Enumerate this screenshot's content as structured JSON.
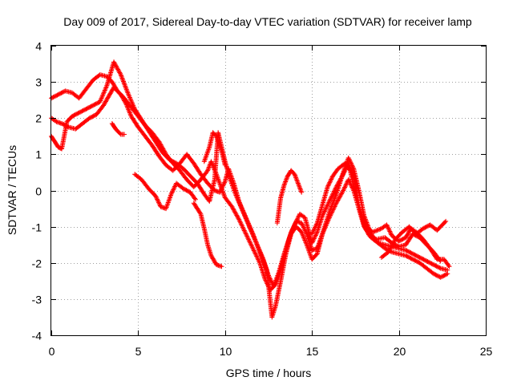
{
  "chart_data": {
    "type": "scatter",
    "title": "Day 009 of 2017, Sidereal Day-to-day VTEC variation (SDTVAR) for receiver lamp",
    "xlabel": "GPS time / hours",
    "ylabel": "SDTVAR / TECUs",
    "xlim": [
      0,
      25
    ],
    "ylim": [
      -4,
      4
    ],
    "xticks": [
      0,
      5,
      10,
      15,
      20,
      25
    ],
    "yticks": [
      -4,
      -3,
      -2,
      -1,
      0,
      1,
      2,
      3,
      4
    ],
    "grid": true,
    "marker": "+",
    "color": "#ff0000",
    "series": [
      {
        "values": [
          [
            0,
            2.55
          ],
          [
            0.4,
            2.65
          ],
          [
            0.8,
            2.75
          ],
          [
            1.2,
            2.7
          ],
          [
            1.6,
            2.55
          ],
          [
            2.0,
            2.8
          ],
          [
            2.4,
            3.05
          ],
          [
            2.8,
            3.2
          ],
          [
            3.2,
            3.15
          ],
          [
            3.5,
            3.0
          ],
          [
            3.8,
            2.75
          ],
          [
            4.2,
            2.55
          ],
          [
            4.6,
            2.3
          ],
          [
            5.0,
            2.05
          ],
          [
            5.4,
            1.8
          ],
          [
            5.8,
            1.6
          ],
          [
            6.2,
            1.35
          ],
          [
            6.6,
            1.0
          ],
          [
            7.0,
            0.75
          ],
          [
            7.4,
            0.55
          ],
          [
            7.8,
            0.3
          ],
          [
            8.2,
            0.1
          ],
          [
            8.6,
            0.3
          ],
          [
            9.0,
            0.55
          ],
          [
            9.2,
            0.8
          ],
          [
            9.5,
            0.45
          ],
          [
            9.8,
            0.05
          ],
          [
            10.0,
            -0.2
          ],
          [
            10.4,
            -0.45
          ],
          [
            10.8,
            -0.8
          ],
          [
            11.2,
            -1.2
          ],
          [
            11.6,
            -1.6
          ],
          [
            12.0,
            -2.0
          ],
          [
            12.3,
            -2.45
          ],
          [
            12.6,
            -2.75
          ],
          [
            12.9,
            -2.6
          ],
          [
            13.2,
            -2.2
          ],
          [
            13.5,
            -1.65
          ],
          [
            13.8,
            -1.15
          ],
          [
            14.1,
            -0.85
          ],
          [
            14.4,
            -0.9
          ],
          [
            14.7,
            -1.2
          ],
          [
            15.0,
            -1.65
          ],
          [
            15.3,
            -1.6
          ],
          [
            15.6,
            -1.2
          ],
          [
            16.0,
            -0.75
          ],
          [
            16.4,
            -0.35
          ],
          [
            16.8,
            0.0
          ],
          [
            17.1,
            0.3
          ],
          [
            17.4,
            0.0
          ],
          [
            17.7,
            -0.5
          ],
          [
            18.0,
            -1.0
          ],
          [
            18.4,
            -1.3
          ],
          [
            18.8,
            -1.45
          ],
          [
            19.2,
            -1.5
          ],
          [
            19.6,
            -1.55
          ],
          [
            20.0,
            -1.6
          ],
          [
            20.4,
            -1.65
          ],
          [
            20.8,
            -1.75
          ],
          [
            21.2,
            -1.85
          ],
          [
            21.6,
            -1.95
          ],
          [
            22.0,
            -2.05
          ],
          [
            22.4,
            -2.15
          ],
          [
            22.8,
            -2.2
          ]
        ]
      },
      {
        "values": [
          [
            0,
            2.0
          ],
          [
            0.3,
            1.9
          ],
          [
            0.6,
            1.85
          ],
          [
            1.0,
            1.75
          ],
          [
            1.4,
            1.7
          ],
          [
            1.8,
            1.85
          ],
          [
            2.2,
            2.0
          ],
          [
            2.6,
            2.1
          ],
          [
            3.0,
            2.35
          ],
          [
            3.3,
            2.6
          ],
          [
            3.6,
            2.85
          ],
          [
            4.0,
            2.65
          ],
          [
            4.3,
            2.4
          ],
          [
            4.6,
            2.05
          ],
          [
            5.0,
            1.75
          ],
          [
            5.4,
            1.5
          ],
          [
            5.8,
            1.25
          ],
          [
            6.2,
            0.95
          ],
          [
            6.6,
            0.7
          ],
          [
            7.0,
            0.55
          ],
          [
            7.4,
            0.75
          ],
          [
            7.8,
            1.0
          ],
          [
            8.2,
            0.75
          ],
          [
            8.6,
            0.45
          ],
          [
            9.0,
            0.2
          ],
          [
            9.4,
            0.0
          ],
          [
            9.7,
            -0.05
          ],
          [
            10.0,
            0.25
          ],
          [
            10.2,
            0.6
          ],
          [
            10.5,
            0.2
          ],
          [
            10.8,
            -0.3
          ],
          [
            11.2,
            -0.75
          ],
          [
            11.6,
            -1.2
          ],
          [
            12.0,
            -1.7
          ],
          [
            12.4,
            -2.2
          ],
          [
            12.7,
            -3.5
          ],
          [
            12.9,
            -3.2
          ],
          [
            13.2,
            -2.5
          ],
          [
            13.5,
            -1.75
          ],
          [
            13.8,
            -1.2
          ],
          [
            14.1,
            -1.0
          ],
          [
            14.4,
            -1.15
          ],
          [
            14.7,
            -1.5
          ],
          [
            15.0,
            -1.9
          ],
          [
            15.3,
            -1.75
          ],
          [
            15.6,
            -1.2
          ],
          [
            16.0,
            -0.6
          ],
          [
            16.4,
            -0.1
          ],
          [
            16.8,
            0.5
          ],
          [
            17.1,
            0.9
          ],
          [
            17.4,
            0.6
          ],
          [
            17.7,
            0.0
          ],
          [
            18.0,
            -0.7
          ],
          [
            18.4,
            -1.2
          ],
          [
            18.8,
            -1.45
          ],
          [
            19.2,
            -1.6
          ],
          [
            19.6,
            -1.7
          ],
          [
            20.0,
            -1.75
          ],
          [
            20.4,
            -1.8
          ],
          [
            20.8,
            -1.9
          ],
          [
            21.2,
            -2.0
          ],
          [
            21.6,
            -2.15
          ],
          [
            22.0,
            -2.3
          ],
          [
            22.4,
            -2.4
          ],
          [
            22.8,
            -2.3
          ]
        ]
      },
      {
        "values": [
          [
            0,
            1.5
          ],
          [
            0.2,
            1.35
          ],
          [
            0.4,
            1.2
          ],
          [
            0.6,
            1.15
          ],
          [
            0.9,
            1.9
          ],
          [
            1.2,
            2.05
          ],
          [
            1.6,
            2.15
          ],
          [
            2.0,
            2.25
          ],
          [
            2.4,
            2.35
          ],
          [
            2.8,
            2.45
          ],
          [
            3.2,
            2.9
          ],
          [
            3.6,
            3.55
          ],
          [
            4.0,
            3.2
          ],
          [
            4.4,
            2.7
          ],
          [
            4.8,
            2.25
          ],
          [
            5.2,
            1.95
          ],
          [
            5.6,
            1.65
          ],
          [
            6.0,
            1.35
          ],
          [
            6.4,
            1.05
          ],
          [
            6.8,
            0.85
          ],
          [
            7.2,
            0.75
          ],
          [
            7.6,
            0.6
          ],
          [
            8.0,
            0.4
          ],
          [
            8.4,
            0.2
          ],
          [
            8.8,
            -0.1
          ],
          [
            9.1,
            -0.3
          ],
          [
            9.4,
            0.3
          ],
          [
            9.6,
            1.6
          ],
          [
            9.8,
            1.2
          ],
          [
            10.0,
            0.8
          ],
          [
            10.3,
            0.3
          ],
          [
            10.6,
            -0.1
          ],
          [
            11.0,
            -0.55
          ],
          [
            11.4,
            -1.0
          ],
          [
            11.8,
            -1.45
          ],
          [
            12.2,
            -1.9
          ],
          [
            12.5,
            -2.35
          ],
          [
            12.8,
            -2.65
          ],
          [
            13.1,
            -2.25
          ],
          [
            13.4,
            -1.75
          ],
          [
            13.7,
            -1.3
          ],
          [
            14.0,
            -0.95
          ],
          [
            14.3,
            -0.65
          ],
          [
            14.6,
            -0.75
          ],
          [
            15.0,
            -1.45
          ],
          [
            15.3,
            -1.15
          ],
          [
            15.6,
            -0.7
          ],
          [
            16.0,
            -0.3
          ],
          [
            16.4,
            0.1
          ],
          [
            16.8,
            0.45
          ],
          [
            17.1,
            0.75
          ],
          [
            17.4,
            0.35
          ],
          [
            17.7,
            -0.4
          ],
          [
            18.0,
            -0.95
          ],
          [
            18.3,
            -1.25
          ],
          [
            18.7,
            -1.35
          ],
          [
            19.2,
            -1.3
          ],
          [
            19.6,
            -1.45
          ],
          [
            20.0,
            -1.55
          ],
          [
            20.4,
            -1.5
          ],
          [
            20.8,
            -1.2
          ],
          [
            21.2,
            -1.3
          ],
          [
            21.6,
            -1.5
          ],
          [
            22.0,
            -1.7
          ],
          [
            22.4,
            -1.95
          ]
        ]
      },
      {
        "values": [
          [
            3.5,
            1.85
          ],
          [
            3.7,
            1.7
          ],
          [
            4.0,
            1.55
          ],
          [
            4.2,
            1.55
          ]
        ]
      },
      {
        "values": [
          [
            4.8,
            0.45
          ],
          [
            5.2,
            0.3
          ],
          [
            5.6,
            0.05
          ],
          [
            6.0,
            -0.15
          ],
          [
            6.3,
            -0.45
          ],
          [
            6.6,
            -0.5
          ],
          [
            6.9,
            -0.1
          ],
          [
            7.2,
            0.2
          ],
          [
            7.6,
            0.05
          ],
          [
            8.0,
            -0.05
          ],
          [
            8.3,
            -0.25
          ]
        ]
      },
      {
        "values": [
          [
            8.2,
            -0.35
          ],
          [
            8.6,
            -0.65
          ],
          [
            8.8,
            -1.05
          ],
          [
            9.0,
            -1.5
          ],
          [
            9.2,
            -1.8
          ],
          [
            9.5,
            -2.05
          ],
          [
            9.8,
            -2.1
          ]
        ]
      },
      {
        "values": [
          [
            8.8,
            0.8
          ],
          [
            9.1,
            1.2
          ],
          [
            9.3,
            1.6
          ],
          [
            9.5,
            1.5
          ],
          [
            9.8,
            1.1
          ],
          [
            10.0,
            0.7
          ]
        ]
      },
      {
        "values": [
          [
            13.0,
            -0.9
          ],
          [
            13.2,
            -0.2
          ],
          [
            13.4,
            0.15
          ],
          [
            13.6,
            0.4
          ],
          [
            13.8,
            0.55
          ],
          [
            14.0,
            0.45
          ],
          [
            14.2,
            0.2
          ],
          [
            14.4,
            -0.05
          ]
        ]
      },
      {
        "values": [
          [
            15.0,
            -1.2
          ],
          [
            15.3,
            -0.9
          ],
          [
            15.6,
            -0.4
          ],
          [
            15.9,
            0.1
          ],
          [
            16.2,
            0.4
          ],
          [
            16.5,
            0.6
          ],
          [
            16.9,
            0.75
          ],
          [
            17.2,
            0.55
          ],
          [
            17.5,
            -0.1
          ],
          [
            17.8,
            -0.6
          ],
          [
            18.1,
            -1.0
          ],
          [
            18.5,
            -1.15
          ],
          [
            19.0,
            -1.05
          ],
          [
            19.3,
            -0.95
          ],
          [
            19.6,
            -1.25
          ],
          [
            20.0,
            -1.4
          ],
          [
            20.4,
            -1.3
          ],
          [
            20.7,
            -1.05
          ],
          [
            21.0,
            -1.15
          ],
          [
            21.4,
            -1.35
          ],
          [
            21.8,
            -1.6
          ],
          [
            22.2,
            -1.9
          ],
          [
            22.6,
            -1.9
          ],
          [
            22.9,
            -2.1
          ]
        ]
      },
      {
        "values": [
          [
            19.0,
            -1.85
          ],
          [
            19.4,
            -1.7
          ],
          [
            19.8,
            -1.35
          ],
          [
            20.2,
            -1.15
          ],
          [
            20.6,
            -1.0
          ],
          [
            21.0,
            -1.2
          ],
          [
            21.4,
            -1.05
          ],
          [
            21.8,
            -0.95
          ],
          [
            22.2,
            -1.1
          ],
          [
            22.5,
            -0.95
          ],
          [
            22.7,
            -0.85
          ]
        ]
      }
    ]
  }
}
